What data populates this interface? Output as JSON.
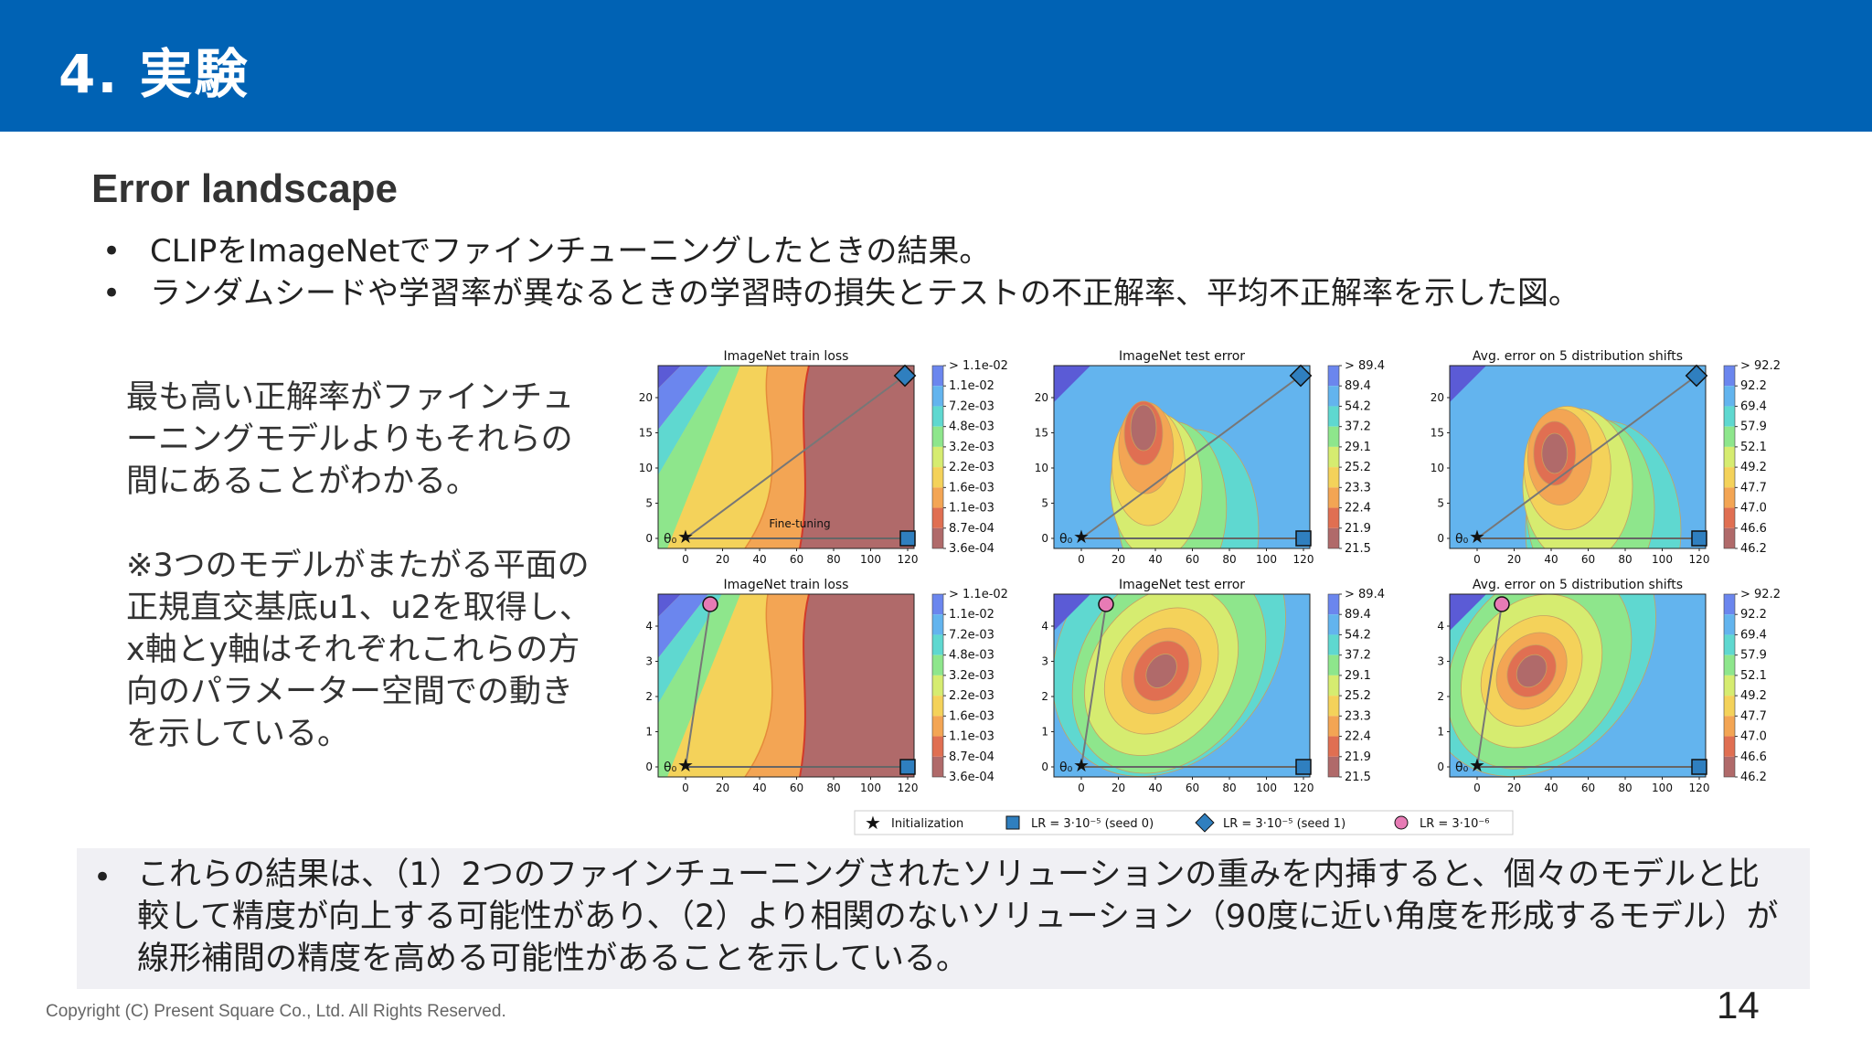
{
  "header": {
    "title": "4. 実験"
  },
  "section_title": "Error landscape",
  "bullets": [
    "CLIPをImageNetでファインチューニングしたときの結果。",
    "ランダムシードや学習率が異なるときの学習時の損失とテストの不正解率、平均不正解率を示した図。"
  ],
  "side_text": [
    "最も高い正解率がファインチューニングモデルよりもそれらの間にあることがわかる。",
    "※3つのモデルがまたがる平面の正規直交基底u1、u2を取得し、x軸とy軸はそれぞれこれらの方向のパラメーター空間での動きを示している。"
  ],
  "summary": "これらの結果は、（1）2つのファインチューニングされたソリューションの重みを内挿すると、個々のモデルと比較して精度が向上する可能性があり、（2）より相関のないソリューション（90度に近い角度を形成するモデル）が線形補間の精度を高める可能性があることを示している。",
  "footer": "Copyright (C) Present Square Co., Ltd. All Rights Reserved.",
  "page_number": "14",
  "colors": {
    "header": "#0062b4",
    "summary_bg": "#f0f0f4"
  },
  "figure": {
    "panels": [
      {
        "title": "ImageNet train loss",
        "cbar": [
          "> 1.1e-02",
          "1.1e-02",
          "7.2e-03",
          "4.8e-03",
          "3.2e-03",
          "2.2e-03",
          "1.6e-03",
          "1.1e-03",
          "8.7e-04",
          "3.6e-04"
        ]
      },
      {
        "title": "ImageNet test error",
        "cbar": [
          "> 89.4",
          "89.4",
          "54.2",
          "37.2",
          "29.1",
          "25.2",
          "23.3",
          "22.4",
          "21.9",
          "21.5"
        ]
      },
      {
        "title": "Avg. error on 5 distribution shifts",
        "cbar": [
          "> 92.2",
          "92.2",
          "69.4",
          "57.9",
          "52.1",
          "49.2",
          "47.7",
          "47.0",
          "46.6",
          "46.2"
        ]
      }
    ],
    "row1_yticks": [
      "20",
      "15",
      "10",
      "5",
      "0"
    ],
    "row2_yticks": [
      "4",
      "3",
      "2",
      "1",
      "0"
    ],
    "xticks": [
      "0",
      "20",
      "40",
      "60",
      "80",
      "100",
      "120"
    ],
    "theta_label": "θ₀",
    "annotation": "Fine-tuning",
    "legend": [
      {
        "marker": "star",
        "label": "Initialization"
      },
      {
        "marker": "square",
        "label": "LR = 3·10⁻⁵ (seed 0)"
      },
      {
        "marker": "diamond",
        "label": "LR = 3·10⁻⁵ (seed 1)"
      },
      {
        "marker": "circle",
        "label": "LR = 3·10⁻⁶"
      }
    ]
  }
}
